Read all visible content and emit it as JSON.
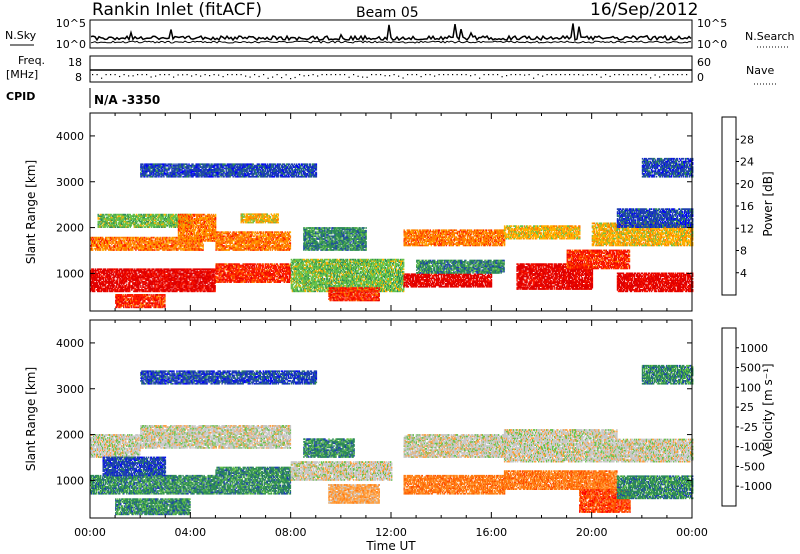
{
  "header": {
    "station": "Rankin Inlet (fitACF)",
    "beam": "Beam 05",
    "date": "16/Sep/2012"
  },
  "nsky_panel": {
    "left_label": "N.Sky",
    "right_label": "N.Search",
    "left_ticks": [
      "10^5",
      "10^0"
    ],
    "right_ticks": [
      "10^5",
      "10^0"
    ]
  },
  "freq_panel": {
    "left_label_top": "Freq.",
    "left_label_bottom": "[MHz]",
    "right_label": "Nave",
    "left_ticks": [
      "18",
      "8"
    ],
    "right_ticks": [
      "60",
      "0"
    ]
  },
  "cpid": {
    "label": "CPID",
    "value": "N/A -3350"
  },
  "chart_data": [
    {
      "type": "heatmap",
      "name": "power",
      "ylabel": "Slant Range [km]",
      "ylim": [
        180,
        4500
      ],
      "yticks": [
        "1000",
        "2000",
        "3000",
        "4000"
      ],
      "xlim_hours": [
        0,
        24
      ],
      "colorbar": {
        "label": "Power [dB]",
        "ticks": [
          "28",
          "24",
          "20",
          "16",
          "12",
          "8",
          "4"
        ],
        "colors": [
          "#0000ff",
          "#1e40b0",
          "#2e8b57",
          "#66c24a",
          "#ffb000",
          "#ff7a00",
          "#ff1a00",
          "#e00000"
        ]
      },
      "bands": [
        {
          "t0": 0.0,
          "t1": 5.0,
          "r0": 600,
          "r1": 1100,
          "level": 7
        },
        {
          "t0": 0.0,
          "t1": 4.5,
          "r0": 1500,
          "r1": 1800,
          "level": 5
        },
        {
          "t0": 0.3,
          "t1": 4.0,
          "r0": 2000,
          "r1": 2300,
          "level": 3
        },
        {
          "t0": 1.0,
          "t1": 3.0,
          "r0": 250,
          "r1": 550,
          "level": 6
        },
        {
          "t0": 3.5,
          "t1": 5.0,
          "r0": 1700,
          "r1": 2300,
          "level": 5
        },
        {
          "t0": 5.0,
          "t1": 8.0,
          "r0": 800,
          "r1": 1200,
          "level": 6
        },
        {
          "t0": 5.0,
          "t1": 8.0,
          "r0": 1500,
          "r1": 1900,
          "level": 5
        },
        {
          "t0": 6.0,
          "t1": 7.5,
          "r0": 2100,
          "r1": 2300,
          "level": 4
        },
        {
          "t0": 8.0,
          "t1": 12.5,
          "r0": 600,
          "r1": 1300,
          "level": 3
        },
        {
          "t0": 8.5,
          "t1": 11.0,
          "r0": 1500,
          "r1": 2000,
          "level": 2
        },
        {
          "t0": 9.5,
          "t1": 11.5,
          "r0": 400,
          "r1": 700,
          "level": 6
        },
        {
          "t0": 12.5,
          "t1": 16.0,
          "r0": 700,
          "r1": 1000,
          "level": 7
        },
        {
          "t0": 12.5,
          "t1": 16.5,
          "r0": 1600,
          "r1": 1950,
          "level": 5
        },
        {
          "t0": 13.0,
          "t1": 16.5,
          "r0": 1000,
          "r1": 1300,
          "level": 2
        },
        {
          "t0": 16.5,
          "t1": 19.5,
          "r0": 1750,
          "r1": 2050,
          "level": 4
        },
        {
          "t0": 17.0,
          "t1": 20.0,
          "r0": 650,
          "r1": 1200,
          "level": 7
        },
        {
          "t0": 19.0,
          "t1": 21.5,
          "r0": 1100,
          "r1": 1500,
          "level": 6
        },
        {
          "t0": 20.0,
          "t1": 24.0,
          "r0": 1600,
          "r1": 2100,
          "level": 4
        },
        {
          "t0": 21.0,
          "t1": 24.0,
          "r0": 600,
          "r1": 1000,
          "level": 7
        },
        {
          "t0": 21.0,
          "t1": 24.0,
          "r0": 2000,
          "r1": 2400,
          "level": 1
        },
        {
          "t0": 2.0,
          "t1": 9.0,
          "r0": 3100,
          "r1": 3400,
          "level": 1
        },
        {
          "t0": 22.0,
          "t1": 24.0,
          "r0": 3100,
          "r1": 3500,
          "level": 1
        }
      ]
    },
    {
      "type": "heatmap",
      "name": "velocity",
      "ylabel": "Slant Range [km]",
      "ylim": [
        180,
        4500
      ],
      "yticks": [
        "1000",
        "2000",
        "3000",
        "4000"
      ],
      "xlabel": "Time UT",
      "xlim_hours": [
        0,
        24
      ],
      "xticks": [
        "00:00",
        "04:00",
        "08:00",
        "12:00",
        "16:00",
        "20:00",
        "00:00"
      ],
      "colorbar": {
        "label": "Velocity [m s⁻¹]",
        "ticks": [
          "1000",
          "500",
          "100",
          "25",
          "-25",
          "-100",
          "-500",
          "-1000"
        ],
        "colors": [
          "#ff0000",
          "#ff4a00",
          "#ff7a10",
          "#ffa040",
          "#c8c8c8",
          "#66c24a",
          "#2e8b57",
          "#1e40b0",
          "#0000ff"
        ]
      },
      "bands": [
        {
          "t0": 0.0,
          "t1": 2.0,
          "r0": 1500,
          "r1": 2000,
          "level": 4
        },
        {
          "t0": 0.0,
          "t1": 5.0,
          "r0": 700,
          "r1": 1100,
          "level": 6
        },
        {
          "t0": 0.5,
          "t1": 3.0,
          "r0": 1100,
          "r1": 1500,
          "level": 7
        },
        {
          "t0": 1.0,
          "t1": 4.0,
          "r0": 250,
          "r1": 600,
          "level": 6
        },
        {
          "t0": 2.0,
          "t1": 8.0,
          "r0": 1700,
          "r1": 2200,
          "level": 4
        },
        {
          "t0": 5.0,
          "t1": 8.0,
          "r0": 700,
          "r1": 1300,
          "level": 6
        },
        {
          "t0": 8.0,
          "t1": 12.0,
          "r0": 1000,
          "r1": 1400,
          "level": 4
        },
        {
          "t0": 9.5,
          "t1": 11.5,
          "r0": 500,
          "r1": 900,
          "level": 3
        },
        {
          "t0": 8.5,
          "t1": 10.5,
          "r0": 1500,
          "r1": 1900,
          "level": 6
        },
        {
          "t0": 12.5,
          "t1": 16.5,
          "r0": 700,
          "r1": 1100,
          "level": 2
        },
        {
          "t0": 12.5,
          "t1": 16.5,
          "r0": 1500,
          "r1": 2000,
          "level": 4
        },
        {
          "t0": 16.5,
          "t1": 21.0,
          "r0": 800,
          "r1": 1200,
          "level": 2
        },
        {
          "t0": 16.5,
          "t1": 21.0,
          "r0": 1400,
          "r1": 2100,
          "level": 4
        },
        {
          "t0": 19.5,
          "t1": 21.5,
          "r0": 300,
          "r1": 800,
          "level": 1
        },
        {
          "t0": 21.0,
          "t1": 24.0,
          "r0": 600,
          "r1": 1100,
          "level": 6
        },
        {
          "t0": 21.0,
          "t1": 24.0,
          "r0": 1400,
          "r1": 1900,
          "level": 4
        },
        {
          "t0": 2.0,
          "t1": 9.0,
          "r0": 3100,
          "r1": 3400,
          "level": 7
        },
        {
          "t0": 22.0,
          "t1": 24.0,
          "r0": 3100,
          "r1": 3500,
          "level": 6
        }
      ]
    }
  ]
}
